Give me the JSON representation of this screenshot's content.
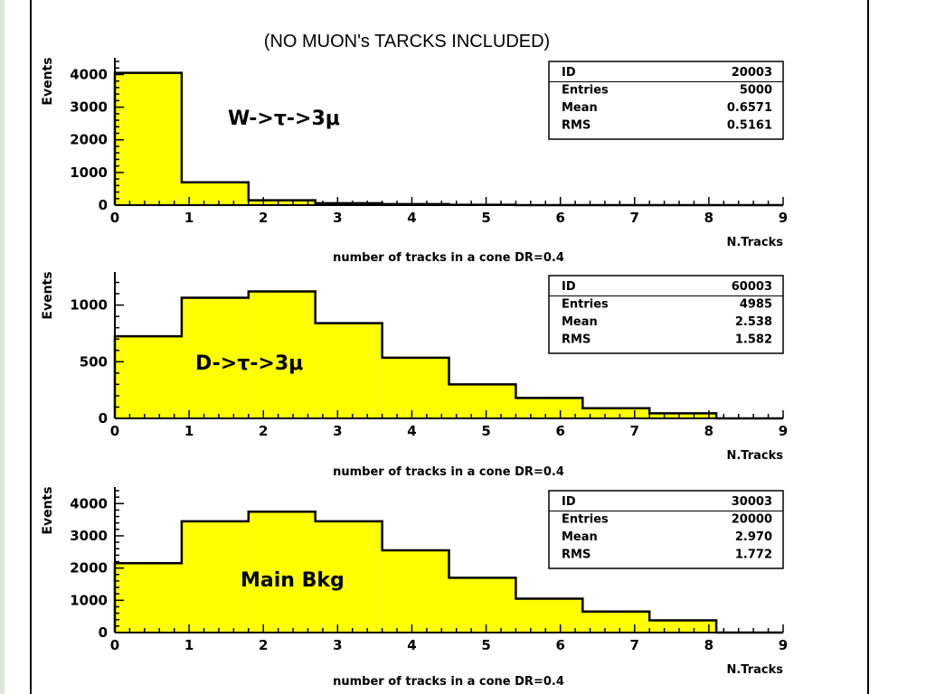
{
  "title": "(NO MUON's TARCKS INCLUDED)",
  "colors": {
    "fill": "#ffff00",
    "left_strip": "#dde9d4",
    "frame": "#000000"
  },
  "chart_data": [
    {
      "type": "bar",
      "label": "W->τ->3μ",
      "xlabel": "number of tracks in a cone DR=0.4",
      "xunit": "N.Tracks",
      "ylabel": "Events",
      "xlim": [
        0,
        9
      ],
      "ylim": [
        0,
        4400
      ],
      "x_ticks": [
        "0",
        "1",
        "2",
        "3",
        "4",
        "5",
        "6",
        "7",
        "8",
        "9"
      ],
      "y_ticks": [
        {
          "v": 0,
          "t": "0"
        },
        {
          "v": 1000,
          "t": "1000"
        },
        {
          "v": 2000,
          "t": "2000"
        },
        {
          "v": 3000,
          "t": "3000"
        },
        {
          "v": 4000,
          "t": "4000"
        }
      ],
      "bin_edges": [
        0,
        0.9,
        1.8,
        2.7,
        3.6,
        4.5,
        5.4,
        6.3,
        7.2,
        8.1,
        9.0
      ],
      "values": [
        4050,
        700,
        150,
        60,
        30,
        10,
        0,
        0,
        0,
        0
      ],
      "stats": [
        {
          "k": "ID",
          "v": "20003"
        },
        {
          "k": "Entries",
          "v": "5000"
        },
        {
          "k": "Mean",
          "v": "0.6571"
        },
        {
          "k": "RMS",
          "v": "0.5161"
        }
      ]
    },
    {
      "type": "bar",
      "label": "D->τ->3μ",
      "xlabel": "number of tracks in a cone DR=0.4",
      "xunit": "N.Tracks",
      "ylabel": "Events",
      "xlim": [
        0,
        9
      ],
      "ylim": [
        0,
        1260
      ],
      "x_ticks": [
        "0",
        "1",
        "2",
        "3",
        "4",
        "5",
        "6",
        "7",
        "8",
        "9"
      ],
      "y_ticks": [
        {
          "v": 0,
          "t": "0"
        },
        {
          "v": 500,
          "t": "500"
        },
        {
          "v": 1000,
          "t": "1000"
        }
      ],
      "bin_edges": [
        0,
        0.9,
        1.8,
        2.7,
        3.6,
        4.5,
        5.4,
        6.3,
        7.2,
        8.1,
        9.0
      ],
      "values": [
        725,
        1065,
        1120,
        840,
        535,
        300,
        180,
        90,
        45,
        0
      ],
      "stats": [
        {
          "k": "ID",
          "v": "60003"
        },
        {
          "k": "Entries",
          "v": "4985"
        },
        {
          "k": "Mean",
          "v": "2.538"
        },
        {
          "k": "RMS",
          "v": "1.582"
        }
      ]
    },
    {
      "type": "bar",
      "label": "Main Bkg",
      "xlabel": "number of tracks in a cone DR=0.4",
      "xunit": "N.Tracks",
      "ylabel": "Events",
      "xlim": [
        0,
        9
      ],
      "ylim": [
        0,
        4400
      ],
      "x_ticks": [
        "0",
        "1",
        "2",
        "3",
        "4",
        "5",
        "6",
        "7",
        "8",
        "9"
      ],
      "y_ticks": [
        {
          "v": 0,
          "t": "0"
        },
        {
          "v": 1000,
          "t": "1000"
        },
        {
          "v": 2000,
          "t": "2000"
        },
        {
          "v": 3000,
          "t": "3000"
        },
        {
          "v": 4000,
          "t": "4000"
        }
      ],
      "bin_edges": [
        0,
        0.9,
        1.8,
        2.7,
        3.6,
        4.5,
        5.4,
        6.3,
        7.2,
        8.1,
        9.0
      ],
      "values": [
        2150,
        3450,
        3750,
        3450,
        2550,
        1700,
        1050,
        650,
        380,
        0
      ],
      "stats": [
        {
          "k": "ID",
          "v": "30003"
        },
        {
          "k": "Entries",
          "v": "20000"
        },
        {
          "k": "Mean",
          "v": "2.970"
        },
        {
          "k": "RMS",
          "v": "1.772"
        }
      ]
    }
  ]
}
